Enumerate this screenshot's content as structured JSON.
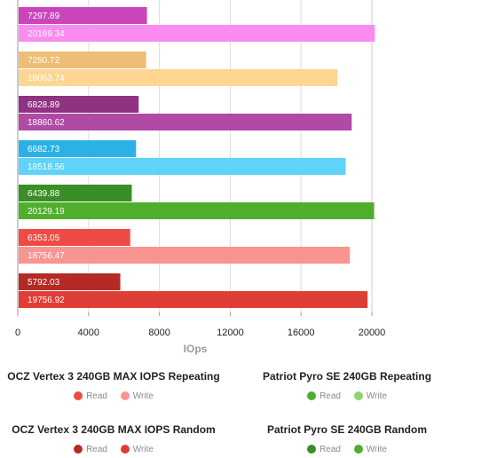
{
  "chart_data": {
    "type": "bar",
    "orientation": "horizontal",
    "xlabel": "IOps",
    "xlim": [
      0,
      20000
    ],
    "xticks": [
      0,
      4000,
      8000,
      12000,
      16000,
      20000
    ],
    "grid": true,
    "groups": [
      {
        "bars": [
          {
            "series": "Read",
            "value": 7297.89,
            "label": "7297.89",
            "color": "#cc44bb"
          },
          {
            "series": "Write",
            "value": 20169.34,
            "label": "20169.34",
            "color": "#fb8cef"
          }
        ]
      },
      {
        "bars": [
          {
            "series": "Read",
            "value": 7250.72,
            "label": "7250.72",
            "color": "#efbe76"
          },
          {
            "series": "Write",
            "value": 18063.74,
            "label": "18063.74",
            "color": "#fdd694"
          }
        ]
      },
      {
        "bars": [
          {
            "series": "Read",
            "value": 6828.89,
            "label": "6828.89",
            "color": "#8f3282"
          },
          {
            "series": "Write",
            "value": 18860.62,
            "label": "18860.62",
            "color": "#b04aa4"
          }
        ]
      },
      {
        "bars": [
          {
            "series": "Read",
            "value": 6682.73,
            "label": "6682.73",
            "color": "#2ab2e6"
          },
          {
            "series": "Write",
            "value": 18518.56,
            "label": "18518.56",
            "color": "#5fd3f8"
          }
        ]
      },
      {
        "bars": [
          {
            "series": "Read",
            "value": 6439.88,
            "label": "6439.88",
            "color": "#3a8e26"
          },
          {
            "series": "Write",
            "value": 20129.19,
            "label": "20129.19",
            "color": "#4faf2c"
          }
        ]
      },
      {
        "bars": [
          {
            "series": "Read",
            "value": 6353.05,
            "label": "6353.05",
            "color": "#ee4b46"
          },
          {
            "series": "Write",
            "value": 18756.47,
            "label": "18756.47",
            "color": "#f89590"
          }
        ]
      },
      {
        "bars": [
          {
            "series": "Read",
            "value": 5792.03,
            "label": "5792.03",
            "color": "#b52a24"
          },
          {
            "series": "Write",
            "value": 19756.92,
            "label": "19756.92",
            "color": "#df3e36"
          }
        ]
      }
    ],
    "legend_placement": "bottom",
    "legends": [
      {
        "title": "OCZ Vertex 3 240GB MAX IOPS Repeating",
        "read": "Read",
        "write": "Write",
        "read_color": "#ee4b46",
        "write_color": "#f89590"
      },
      {
        "title": "Patriot Pyro SE 240GB Repeating",
        "read": "Read",
        "write": "Write",
        "read_color": "#4faf2c",
        "write_color": "#8fd46e"
      },
      {
        "title": "OCZ Vertex 3 240GB MAX IOPS Random",
        "read": "Read",
        "write": "Write",
        "read_color": "#b52a24",
        "write_color": "#df3e36"
      },
      {
        "title": "Patriot Pyro SE 240GB Random",
        "read": "Read",
        "write": "Write",
        "read_color": "#3a8e26",
        "write_color": "#4faf2c"
      }
    ]
  }
}
